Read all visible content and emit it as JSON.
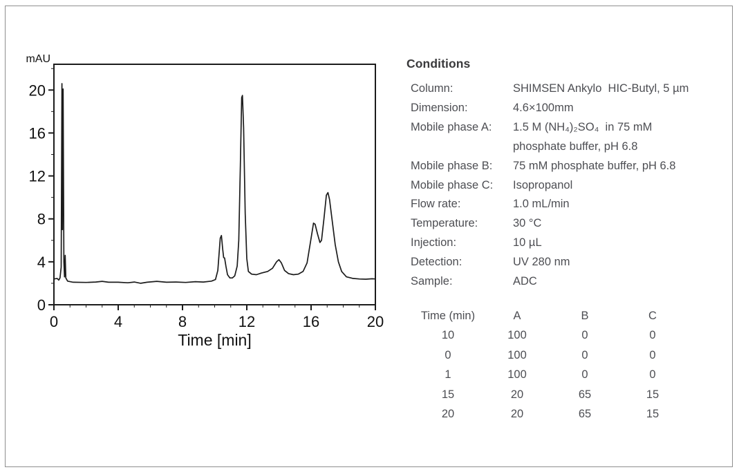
{
  "accent_colors": {
    "body_text": "#4d4e53",
    "heading_text": "#3a3a3c",
    "chart_ink": "#1b1b1b",
    "frame_border": "#8e8e8e"
  },
  "conditions": {
    "heading": "Conditions",
    "rows": [
      {
        "label": "Column:",
        "value": "SHIMSEN Ankylo  HIC-Butyl, 5 µm"
      },
      {
        "label": "Dimension:",
        "value": "4.6×100mm"
      },
      {
        "label": "Mobile phase A:",
        "value": "1.5 M (NH₄)₂SO₄  in 75 mM\nphosphate buffer, pH 6.8"
      },
      {
        "label": "Mobile phase B:",
        "value": "75 mM phosphate buffer, pH 6.8"
      },
      {
        "label": "Mobile phase C:",
        "value": "Isopropanol"
      },
      {
        "label": "Flow rate:",
        "value": "1.0 mL/min"
      },
      {
        "label": "Temperature:",
        "value": "30 °C"
      },
      {
        "label": "Injection:",
        "value": "10 µL"
      },
      {
        "label": "Detection:",
        "value": "UV 280 nm"
      },
      {
        "label": "Sample:",
        "value": "ADC"
      }
    ]
  },
  "gradient": {
    "header": [
      "Time (min)",
      "A",
      "B",
      "C"
    ],
    "rows": [
      [
        "10",
        "100",
        "0",
        "0"
      ],
      [
        "0",
        "100",
        "0",
        "0"
      ],
      [
        "1",
        "100",
        "0",
        "0"
      ],
      [
        "15",
        "20",
        "65",
        "15"
      ],
      [
        "20",
        "20",
        "65",
        "15"
      ]
    ]
  },
  "chart_data": {
    "type": "line",
    "title": "",
    "xlabel": "Time [min]",
    "ylabel": "mAU",
    "xlim": [
      0,
      20
    ],
    "ylim": [
      0,
      22.4
    ],
    "x_ticks": [
      0,
      4,
      8,
      12,
      16,
      20
    ],
    "y_ticks": [
      0,
      4,
      8,
      12,
      16,
      20
    ],
    "x_minor_step": 1,
    "y_minor_step": 2,
    "grid": false,
    "legend": "none",
    "peaks": [
      {
        "time_min": 0.5,
        "mAU": 20.6
      },
      {
        "time_min": 10.4,
        "mAU": 6.4
      },
      {
        "time_min": 11.7,
        "mAU": 19.5
      },
      {
        "time_min": 14.0,
        "mAU": 4.2
      },
      {
        "time_min": 16.2,
        "mAU": 7.7
      },
      {
        "time_min": 17.0,
        "mAU": 10.5
      }
    ],
    "series": [
      {
        "name": "UV 280 nm chromatogram",
        "points": [
          [
            0,
            2.4
          ],
          [
            0.2,
            2.45
          ],
          [
            0.3,
            2.3
          ],
          [
            0.38,
            2.5
          ],
          [
            0.45,
            3.5
          ],
          [
            0.5,
            20.6
          ],
          [
            0.53,
            7.0
          ],
          [
            0.57,
            20.1
          ],
          [
            0.62,
            4.0
          ],
          [
            0.66,
            2.6
          ],
          [
            0.7,
            4.6
          ],
          [
            0.74,
            2.5
          ],
          [
            0.85,
            2.2
          ],
          [
            1.2,
            2.1
          ],
          [
            2,
            2.08
          ],
          [
            2.6,
            2.12
          ],
          [
            3,
            2.18
          ],
          [
            3.4,
            2.1
          ],
          [
            4,
            2.1
          ],
          [
            4.6,
            2.05
          ],
          [
            5,
            2.12
          ],
          [
            5.4,
            2.0
          ],
          [
            5.8,
            2.1
          ],
          [
            6.4,
            2.18
          ],
          [
            7,
            2.1
          ],
          [
            7.6,
            2.12
          ],
          [
            8.2,
            2.08
          ],
          [
            8.8,
            2.15
          ],
          [
            9.3,
            2.12
          ],
          [
            9.8,
            2.2
          ],
          [
            10.05,
            2.35
          ],
          [
            10.2,
            3.2
          ],
          [
            10.35,
            6.2
          ],
          [
            10.42,
            6.45
          ],
          [
            10.5,
            5.2
          ],
          [
            10.56,
            4.4
          ],
          [
            10.62,
            4.35
          ],
          [
            10.7,
            3.6
          ],
          [
            10.8,
            2.8
          ],
          [
            10.95,
            2.5
          ],
          [
            11.1,
            2.5
          ],
          [
            11.25,
            2.7
          ],
          [
            11.4,
            3.6
          ],
          [
            11.5,
            6.0
          ],
          [
            11.6,
            13.0
          ],
          [
            11.68,
            19.3
          ],
          [
            11.73,
            19.5
          ],
          [
            11.8,
            16.5
          ],
          [
            11.9,
            8.5
          ],
          [
            12.0,
            4.3
          ],
          [
            12.1,
            3.1
          ],
          [
            12.3,
            2.85
          ],
          [
            12.6,
            2.8
          ],
          [
            12.9,
            2.95
          ],
          [
            13.3,
            3.1
          ],
          [
            13.6,
            3.4
          ],
          [
            13.85,
            4.0
          ],
          [
            14.0,
            4.2
          ],
          [
            14.15,
            3.9
          ],
          [
            14.35,
            3.2
          ],
          [
            14.6,
            2.9
          ],
          [
            14.9,
            2.8
          ],
          [
            15.2,
            2.85
          ],
          [
            15.5,
            3.1
          ],
          [
            15.75,
            3.9
          ],
          [
            16.0,
            6.2
          ],
          [
            16.15,
            7.6
          ],
          [
            16.25,
            7.5
          ],
          [
            16.4,
            6.6
          ],
          [
            16.55,
            5.8
          ],
          [
            16.65,
            6.0
          ],
          [
            16.8,
            8.0
          ],
          [
            16.95,
            10.2
          ],
          [
            17.05,
            10.45
          ],
          [
            17.15,
            9.8
          ],
          [
            17.3,
            8.0
          ],
          [
            17.5,
            5.6
          ],
          [
            17.7,
            4.0
          ],
          [
            17.9,
            3.1
          ],
          [
            18.2,
            2.6
          ],
          [
            18.6,
            2.45
          ],
          [
            19.0,
            2.4
          ],
          [
            19.4,
            2.38
          ],
          [
            19.8,
            2.42
          ],
          [
            20,
            2.4
          ]
        ]
      }
    ]
  }
}
